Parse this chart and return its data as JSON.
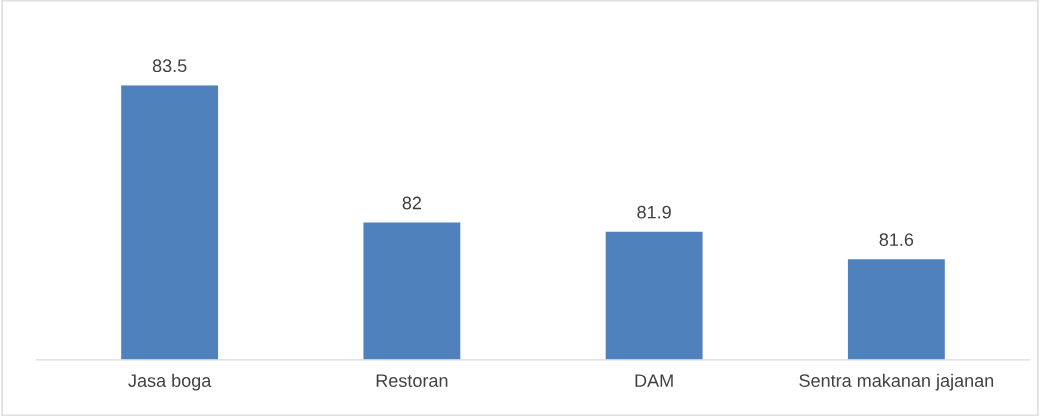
{
  "chart_data": {
    "type": "bar",
    "categories": [
      "Jasa boga",
      "Restoran",
      "DAM",
      "Sentra makanan jajanan"
    ],
    "values": [
      83.5,
      82,
      81.9,
      81.6
    ],
    "color": "#4f81bd",
    "ylim": [
      80.5,
      83.5
    ],
    "tick_labels": "x",
    "data_labels": true,
    "grid": false,
    "legend": false
  }
}
